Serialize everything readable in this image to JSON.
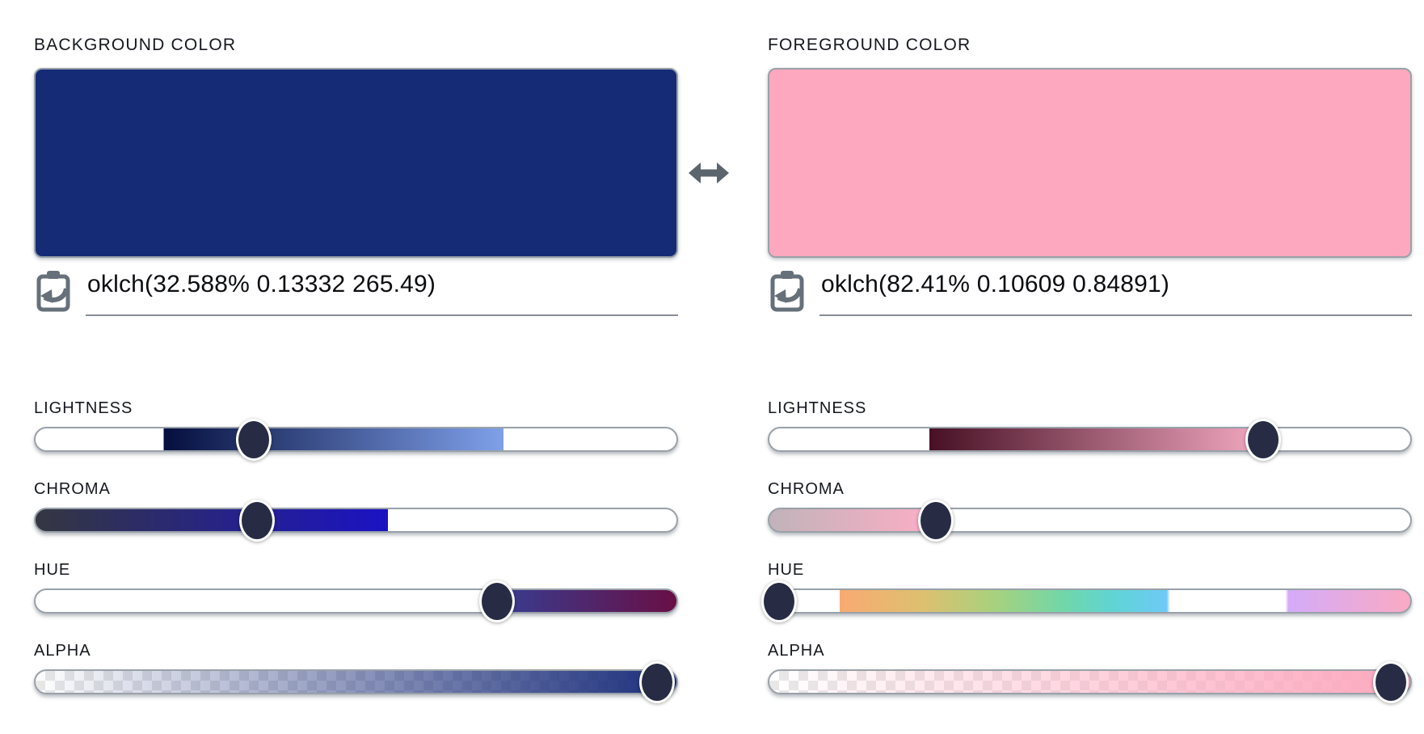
{
  "page": {
    "background": "#ffffff"
  },
  "swap": {
    "icon": "left-right-arrow",
    "color": "#5b656e"
  },
  "slider_ui": {
    "thumb_color": "#272c44",
    "track_border": "#99a1a9",
    "checker_light": "#ffffff",
    "checker_dark": "#e8e8e8"
  },
  "panels": [
    {
      "id": "background",
      "label": "BACKGROUND COLOR",
      "swatch_color": "#152b76",
      "value": "oklch(32.588% 0.13332 265.49)",
      "icon": "clipboard-paste-icon",
      "sliders": [
        {
          "label": "LIGHTNESS",
          "thumb_pct": 34,
          "checker": false,
          "stops": [
            [
              "#ffffff",
              0
            ],
            [
              "#ffffff",
              20
            ],
            [
              "#050f3e",
              20
            ],
            [
              "#7fa0ea",
              73
            ],
            [
              "#ffffff",
              73
            ],
            [
              "#ffffff",
              100
            ]
          ]
        },
        {
          "label": "CHROMA",
          "thumb_pct": 34.5,
          "checker": false,
          "stops": [
            [
              "#343740",
              0
            ],
            [
              "#1b12c4",
              55
            ],
            [
              "#ffffff",
              55
            ],
            [
              "#ffffff",
              100
            ]
          ]
        },
        {
          "label": "HUE",
          "thumb_pct": 72,
          "checker": false,
          "stops": [
            [
              "#ffffff",
              0
            ],
            [
              "#ffffff",
              72
            ],
            [
              "#373d92",
              72
            ],
            [
              "#690f45",
              100
            ]
          ]
        },
        {
          "label": "ALPHA",
          "thumb_pct": 97,
          "checker": true,
          "stops": [
            [
              "rgba(27,46,123,0)",
              0
            ],
            [
              "#1b2e7b",
              100
            ]
          ]
        }
      ]
    },
    {
      "id": "foreground",
      "label": "FOREGROUND COLOR",
      "swatch_color": "#fda8be",
      "value": "oklch(82.41% 0.10609 0.84891)",
      "icon": "clipboard-paste-icon",
      "sliders": [
        {
          "label": "LIGHTNESS",
          "thumb_pct": 77,
          "checker": false,
          "stops": [
            [
              "#ffffff",
              0
            ],
            [
              "#ffffff",
              25
            ],
            [
              "#471024",
              25
            ],
            [
              "#f2a8c0",
              77
            ],
            [
              "#ffffff",
              77
            ],
            [
              "#ffffff",
              100
            ]
          ]
        },
        {
          "label": "CHROMA",
          "thumb_pct": 26,
          "checker": false,
          "stops": [
            [
              "#c1b3b9",
              0
            ],
            [
              "#fdaec6",
              26
            ],
            [
              "#ffffff",
              26
            ],
            [
              "#ffffff",
              100
            ]
          ]
        },
        {
          "label": "HUE",
          "thumb_pct": 1.5,
          "checker": false,
          "stops": [
            [
              "#ffffff",
              0
            ],
            [
              "#ffffff",
              11
            ],
            [
              "#f9aa71",
              11
            ],
            [
              "#ddc070",
              24
            ],
            [
              "#a8d17d",
              35
            ],
            [
              "#70d7a9",
              46
            ],
            [
              "#5fd4d6",
              54
            ],
            [
              "#6fc9f7",
              62
            ],
            [
              "#ffffff",
              62.5
            ],
            [
              "#ffffff",
              80.5
            ],
            [
              "#d4abf9",
              81
            ],
            [
              "#fbaac3",
              100
            ]
          ]
        },
        {
          "label": "ALPHA",
          "thumb_pct": 97,
          "checker": true,
          "stops": [
            [
              "rgba(253,168,190,0)",
              0
            ],
            [
              "#fda8be",
              100
            ]
          ]
        }
      ]
    }
  ]
}
